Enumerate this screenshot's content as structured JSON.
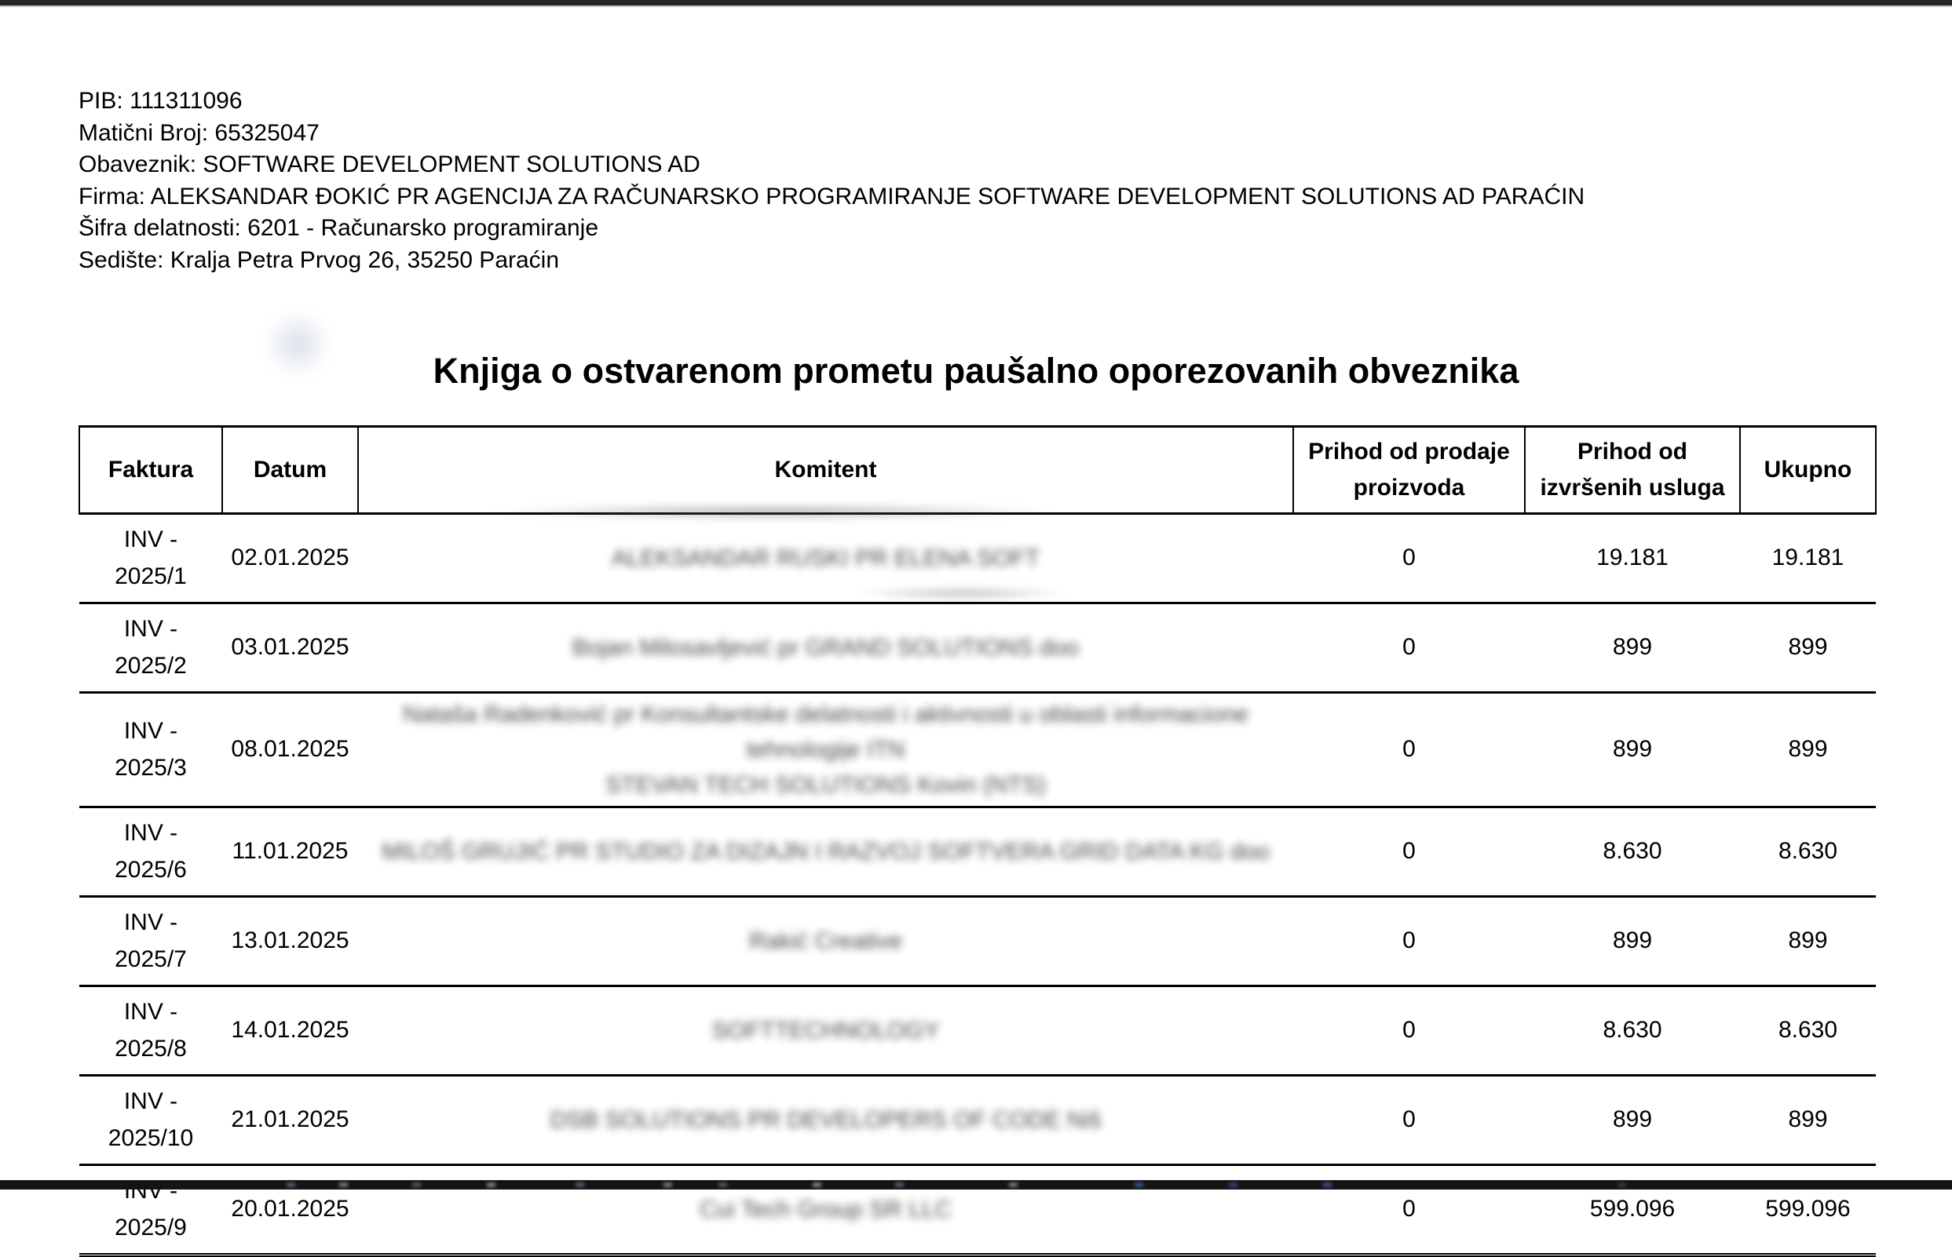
{
  "colors": {
    "top_bar": "#262626",
    "top_bar_divider": "#c9c9c9",
    "table_border": "#000000",
    "taskbar": "#141414",
    "page_background": "#ffffff"
  },
  "document": {
    "company_info": [
      "PIB: 111311096",
      "Matični Broj: 65325047",
      "Obaveznik: SOFTWARE DEVELOPMENT SOLUTIONS AD",
      "Firma: ALEKSANDAR ĐOKIĆ PR AGENCIJA ZA RAČUNARSKO PROGRAMIRANJE SOFTWARE DEVELOPMENT SOLUTIONS AD PARAĆIN",
      "Šifra delatnosti: 6201 - Računarsko programiranje",
      "Sedište: Kralja Petra Prvog 26, 35250 Paraćin"
    ],
    "title": "Knjiga o ostvarenom prometu paušalno oporezovanih obveznika",
    "table": {
      "columns": [
        "Faktura",
        "Datum",
        "Komitent",
        "Prihod od prodaje proizvoda",
        "Prihod od izvršenih usluga",
        "Ukupno"
      ],
      "rows": [
        {
          "faktura_lines": [
            "INV -",
            "2025/1"
          ],
          "datum": "02.01.2025",
          "komitent_blurred": true,
          "komitent_lines": [
            "ALEKSANDAR RUSKI PR ELENA SOFT"
          ],
          "prihod_proizvoda": "0",
          "prihod_usluga": "19.181",
          "ukupno": "19.181"
        },
        {
          "faktura_lines": [
            "INV -",
            "2025/2"
          ],
          "datum": "03.01.2025",
          "komitent_blurred": true,
          "komitent_lines": [
            "Bojan Milosavljević pr GRAND SOLUTIONS doo"
          ],
          "prihod_proizvoda": "0",
          "prihod_usluga": "899",
          "ukupno": "899"
        },
        {
          "faktura_lines": [
            "INV -",
            "2025/3"
          ],
          "datum": "08.01.2025",
          "komitent_blurred": true,
          "komitent_lines": [
            "Nataša Radenković pr Konsultantske delatnosti i aktivnosti u oblasti informacione tehnologije ITN",
            "STEVAN TECH SOLUTIONS Kovin (NTS)"
          ],
          "prihod_proizvoda": "0",
          "prihod_usluga": "899",
          "ukupno": "899"
        },
        {
          "faktura_lines": [
            "INV -",
            "2025/6"
          ],
          "datum": "11.01.2025",
          "komitent_blurred": true,
          "komitent_lines": [
            "MILOŠ GRUJIĆ PR STUDIO ZA DIZAJN I RAZVOJ SOFTVERA GRID DATA KG doo"
          ],
          "prihod_proizvoda": "0",
          "prihod_usluga": "8.630",
          "ukupno": "8.630"
        },
        {
          "faktura_lines": [
            "INV -",
            "2025/7"
          ],
          "datum": "13.01.2025",
          "komitent_blurred": true,
          "komitent_lines": [
            "Rakić Creative"
          ],
          "prihod_proizvoda": "0",
          "prihod_usluga": "899",
          "ukupno": "899"
        },
        {
          "faktura_lines": [
            "INV -",
            "2025/8"
          ],
          "datum": "14.01.2025",
          "komitent_blurred": true,
          "komitent_lines": [
            "SOFTTECHNOLOGY"
          ],
          "prihod_proizvoda": "0",
          "prihod_usluga": "8.630",
          "ukupno": "8.630"
        },
        {
          "faktura_lines": [
            "INV -",
            "2025/10"
          ],
          "datum": "21.01.2025",
          "komitent_blurred": true,
          "komitent_lines": [
            "DSB SOLUTIONS PR DEVELOPERS OF CODE Niš"
          ],
          "prihod_proizvoda": "0",
          "prihod_usluga": "899",
          "ukupno": "899"
        },
        {
          "faktura_lines": [
            "INV -",
            "2025/9"
          ],
          "datum": "20.01.2025",
          "komitent_blurred": true,
          "komitent_lines": [
            "Cui Tech Group SR LLC"
          ],
          "prihod_proizvoda": "0",
          "prihod_usluga": "599.096",
          "ukupno": "599.096"
        }
      ]
    }
  }
}
